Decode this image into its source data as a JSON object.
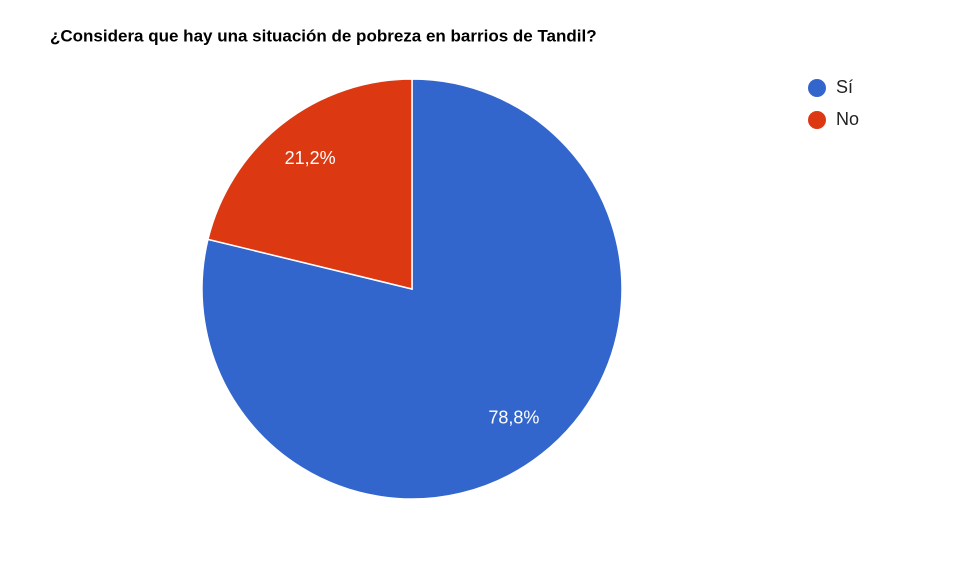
{
  "chart_data": {
    "type": "pie",
    "title": "¿Considera que hay una situación de pobreza en barrios de Tandil?",
    "categories": [
      "Sí",
      "No"
    ],
    "values": [
      78.8,
      21.2
    ],
    "value_labels": [
      "78,8%",
      "21,2%"
    ],
    "colors": [
      "#3366cc",
      "#dc3912"
    ]
  }
}
